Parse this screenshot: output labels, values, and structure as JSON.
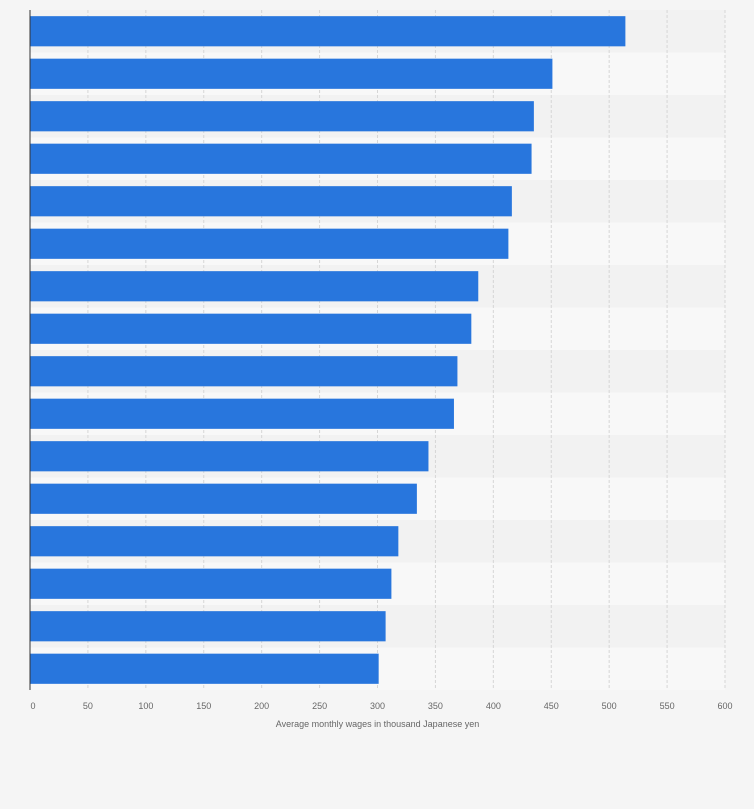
{
  "chart_data": {
    "type": "bar",
    "orientation": "horizontal",
    "categories": [
      "",
      "",
      "",
      "",
      "",
      "",
      "",
      "",
      "",
      "",
      "",
      "",
      "",
      "",
      "",
      ""
    ],
    "values": [
      514,
      451,
      435,
      433,
      416,
      413,
      387,
      381,
      369,
      366,
      344,
      334,
      318,
      312,
      307,
      301
    ],
    "xlabel": "Average monthly wages in thousand Japanese yen",
    "ylabel": "",
    "xlim": [
      0,
      600
    ],
    "xticks": [
      0,
      50,
      100,
      150,
      200,
      250,
      300,
      350,
      400,
      450,
      500,
      550,
      600
    ],
    "grid": true,
    "legend": "none",
    "colors": {
      "bar": "#2876dd",
      "band_dark": "#f2f2f2",
      "band_light": "#f8f8f8",
      "grid": "#d6d6d6",
      "axis": "#333333",
      "text": "#666666"
    }
  }
}
